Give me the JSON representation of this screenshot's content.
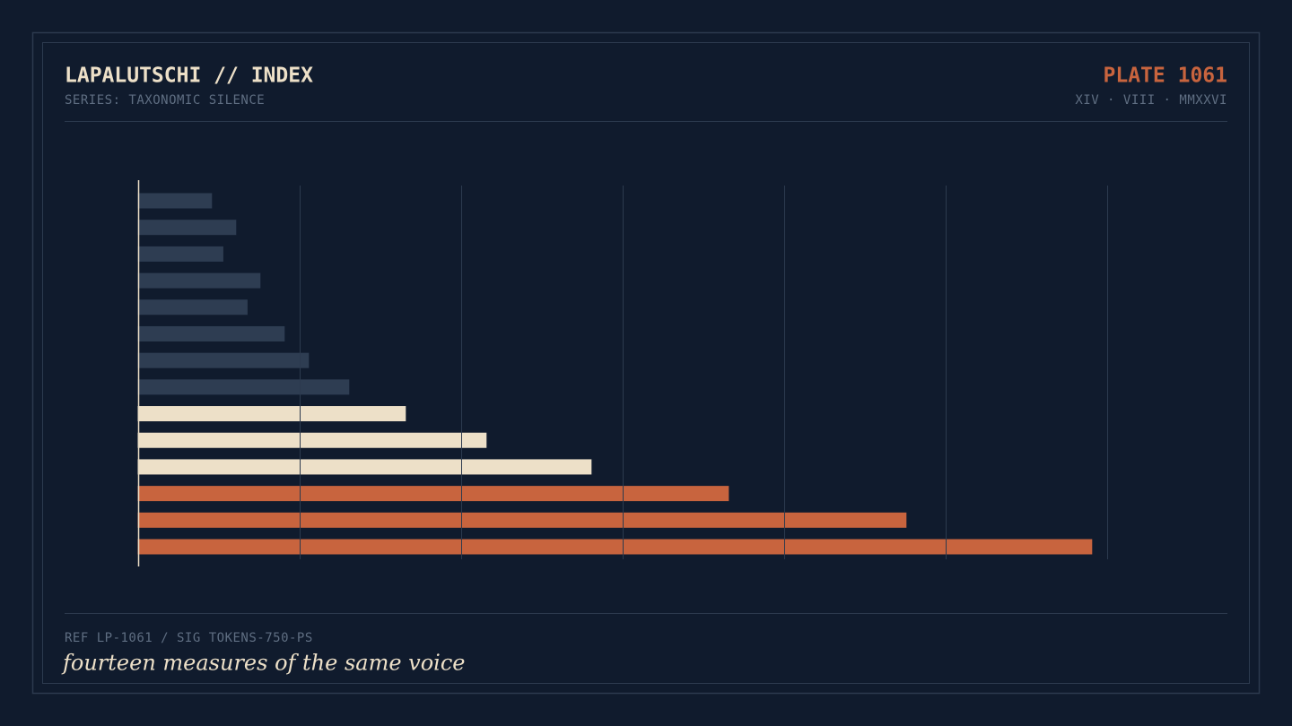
{
  "header": {
    "title": "LAPALUTSCHI // INDEX",
    "series": "SERIES: TAXONOMIC SILENCE",
    "plate": "PLATE 1061",
    "date": "XIV · VIII · MMXXVI"
  },
  "chart_data": {
    "type": "bar",
    "orientation": "horizontal",
    "categories": [
      null,
      null,
      null,
      null,
      null,
      null,
      null,
      null,
      null,
      null,
      null,
      null,
      null,
      null
    ],
    "values": [
      0.46,
      0.61,
      0.53,
      0.76,
      0.68,
      0.91,
      1.06,
      1.31,
      1.66,
      2.16,
      2.81,
      3.66,
      4.76,
      5.91
    ],
    "colors": [
      "#2e3d52",
      "#2e3d52",
      "#2e3d52",
      "#2e3d52",
      "#2e3d52",
      "#2e3d52",
      "#2e3d52",
      "#2e3d52",
      "#ede0c8",
      "#ede0c8",
      "#ede0c8",
      "#c8643e",
      "#c8643e",
      "#c8643e"
    ],
    "xlim": [
      0,
      6
    ],
    "xticks": [
      0,
      1,
      2,
      3,
      4,
      5,
      6
    ],
    "grid": true
  },
  "footer": {
    "ref": "REF LP-1061 / SIG TOKENS-750-PS",
    "caption": "fourteen measures of the same voice"
  }
}
